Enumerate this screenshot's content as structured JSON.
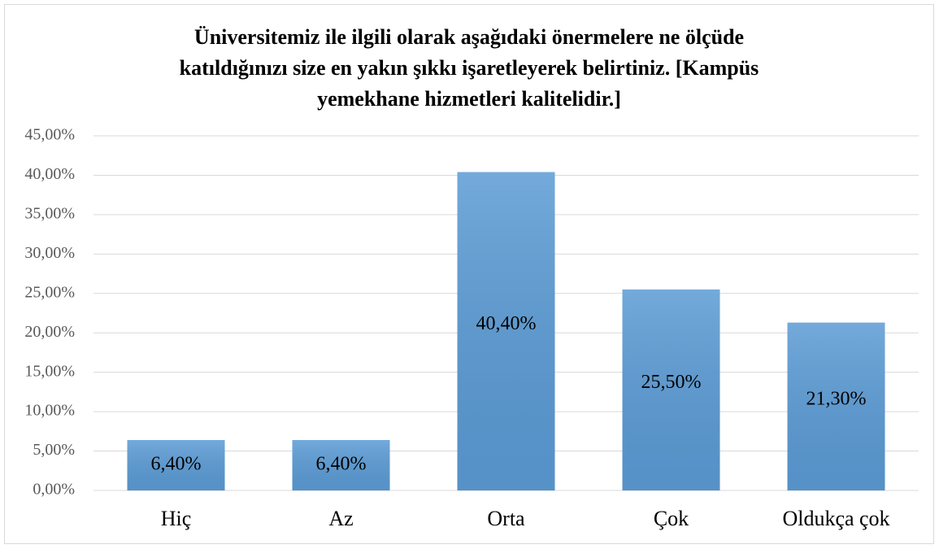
{
  "chart_data": {
    "type": "bar",
    "title": [
      "Üniversitemiz ile ilgili olarak aşağıdaki önermelere ne ölçüde",
      "katıldığınızı size en yakın şıkkı işaretleyerek belirtiniz. [Kampüs",
      "yemekhane hizmetleri kalitelidir.]"
    ],
    "categories": [
      "Hiç",
      "Az",
      "Orta",
      "Çok",
      "Oldukça çok"
    ],
    "values": [
      6.4,
      6.4,
      40.4,
      25.5,
      21.3
    ],
    "value_labels": [
      "6,40%",
      "6,40%",
      "40,40%",
      "25,50%",
      "21,30%"
    ],
    "color": "#5b9bd5",
    "ylim": [
      0,
      45
    ],
    "yticks": [
      {
        "value": 0,
        "label": "0,00%"
      },
      {
        "value": 5,
        "label": "5,00%"
      },
      {
        "value": 10,
        "label": "10,00%"
      },
      {
        "value": 15,
        "label": "15,00%"
      },
      {
        "value": 20,
        "label": "20,00%"
      },
      {
        "value": 25,
        "label": "25,00%"
      },
      {
        "value": 30,
        "label": "30,00%"
      },
      {
        "value": 35,
        "label": "35,00%"
      },
      {
        "value": 40,
        "label": "40,00%"
      },
      {
        "value": 45,
        "label": "45,00%"
      }
    ],
    "grid": true
  }
}
